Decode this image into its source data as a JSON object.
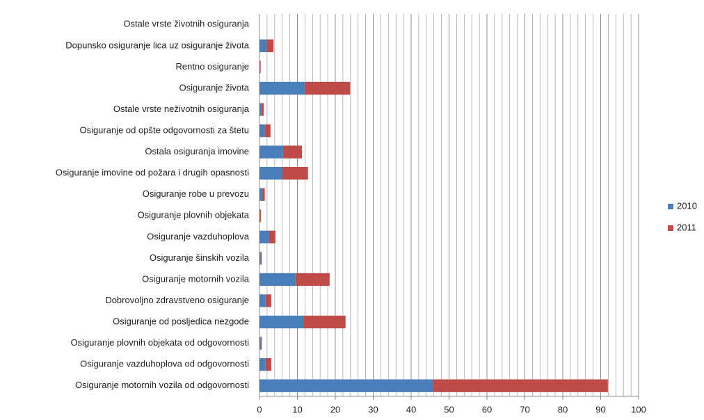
{
  "chart_data": {
    "type": "stacked_barh",
    "categories": [
      "Ostale vrste životnih osiguranja",
      "Dopunsko osiguranje lica uz osiguranje života",
      "Rentno osiguranje",
      "Osiguranje života",
      "Ostale vrste neživotnih osiguranja",
      "Osiguranje od opšte odgovornosti za štetu",
      "Ostala osiguranja imovine",
      "Osiguranje imovine od požara i drugih opasnosti",
      "Osiguranje robe u prevozu",
      "Osiguranje plovnih objekata",
      "Osiguranje vazduhoplova",
      "Osiguranje šinskih vozila",
      "Osiguranje motornih vozila",
      "Dobrovoljno zdravstveno osiguranje",
      "Osiguranje od posljedica nezgode",
      "Osiguranje plovnih objekata od odgovornosti",
      "Osiguranje vazduhoplova od odgovornosti",
      "Osiguranje motornih vozila od odgovornosti"
    ],
    "series": [
      {
        "name": "2010",
        "color": "#4a7ebb",
        "values": [
          0,
          1.8,
          0.1,
          11.9,
          0.5,
          1.4,
          6.2,
          6.0,
          0.7,
          0.2,
          2.5,
          0.3,
          9.5,
          1.6,
          11.4,
          0.3,
          1.6,
          45.7
        ]
      },
      {
        "name": "2011",
        "color": "#be4b48",
        "values": [
          0,
          1.9,
          0.2,
          12.0,
          0.6,
          1.5,
          5.0,
          6.8,
          0.7,
          0.2,
          1.7,
          0.3,
          9.0,
          1.5,
          11.3,
          0.3,
          1.5,
          46.2
        ]
      }
    ],
    "xlim": [
      0,
      100
    ],
    "xticks": [
      0,
      10,
      20,
      30,
      40,
      50,
      60,
      70,
      80,
      90,
      100
    ],
    "minor_xticks": [
      2,
      4,
      6,
      8,
      12,
      14,
      16,
      18,
      22,
      24,
      26,
      28,
      32,
      34,
      36,
      38,
      42,
      44,
      46,
      48,
      52,
      54,
      56,
      58,
      62,
      64,
      66,
      68,
      72,
      74,
      76,
      78,
      82,
      84,
      86,
      88,
      92,
      94,
      96,
      98
    ],
    "grid": true,
    "legend": "right"
  }
}
